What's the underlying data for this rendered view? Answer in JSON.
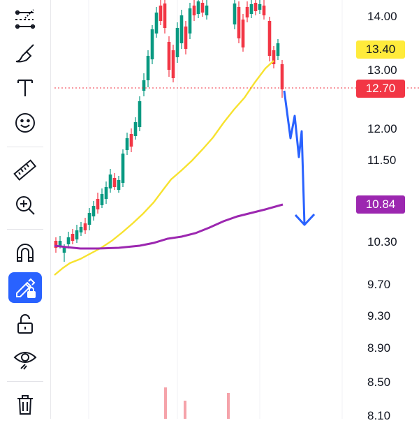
{
  "toolbar": {
    "tools": [
      {
        "name": "trend-line-tool",
        "icon": "trendline-icon"
      },
      {
        "name": "brush-tool",
        "icon": "brush-icon"
      },
      {
        "name": "text-tool",
        "icon": "text-icon"
      },
      {
        "name": "emoji-tool",
        "icon": "smiley-icon"
      },
      {
        "name": "measure-tool",
        "icon": "ruler-icon"
      },
      {
        "name": "zoom-tool",
        "icon": "zoom-in-icon"
      },
      {
        "name": "magnet-tool",
        "icon": "magnet-icon"
      },
      {
        "name": "lock-drawings-tool",
        "icon": "pencil-lock-icon",
        "active": true
      },
      {
        "name": "lock-all-tool",
        "icon": "unlock-icon"
      },
      {
        "name": "hide-drawings-tool",
        "icon": "eye-icon"
      },
      {
        "name": "delete-tool",
        "icon": "trash-icon"
      }
    ],
    "active_color": "#2962ff"
  },
  "price_axis": {
    "ticks": [
      "14.00",
      "13.00",
      "12.00",
      "11.50",
      "10.30",
      "9.70",
      "9.30",
      "8.90",
      "8.50",
      "8.10"
    ]
  },
  "badges": {
    "ma_fast": {
      "value": "13.40",
      "color": "#ffeb3b"
    },
    "last_price": {
      "value": "12.70",
      "color": "#f23645"
    },
    "ma_slow": {
      "value": "10.84",
      "color": "#9c27b0"
    }
  },
  "colors": {
    "up": "#089981",
    "down": "#f23645",
    "ma_fast": "#f7e22f",
    "ma_slow": "#9c27b0",
    "projection_arrow": "#2962ff"
  }
}
